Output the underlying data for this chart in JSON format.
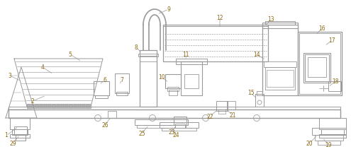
{
  "bg_color": "#ffffff",
  "lc": "#999999",
  "lblc": "#8B6914",
  "lw": 0.7,
  "fig_w": 4.95,
  "fig_h": 2.35,
  "dpi": 100
}
